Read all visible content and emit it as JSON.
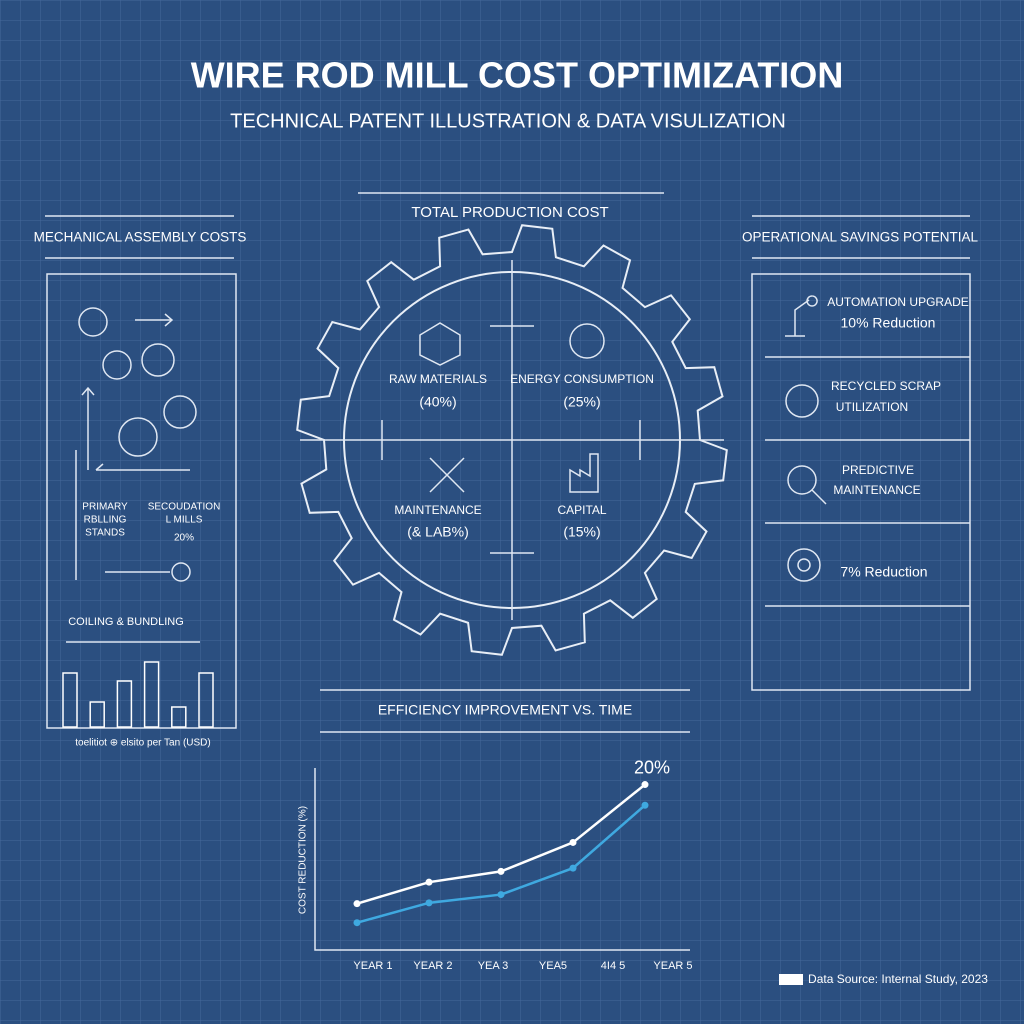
{
  "header": {
    "title": "WIRE ROD MILL COST OPTIMIZATION",
    "subtitle": "TECHNICAL PATENT ILLUSTRATION & DATA VISULIZATION"
  },
  "left_panel": {
    "title": "MECHANICAL ASSEMBLY COSTS",
    "primary": [
      "PRIMARY",
      "RBLLING",
      "STANDS"
    ],
    "secondary": [
      "SECOUDATION",
      "L MILLS"
    ],
    "percent": "20%",
    "coiling": "COILING & BUNDLING"
  },
  "gear": {
    "title": "TOTAL PRODUCTION COST",
    "quadrants": [
      {
        "label": "RAW MATERIALS",
        "share": "(40%)"
      },
      {
        "label": "ENERGY CONSUMPTION",
        "share": "(25%)"
      },
      {
        "label": "MAINTENANCE",
        "share": "(& LAB%)"
      },
      {
        "label": "CAPITAL",
        "share": "(15%)"
      }
    ]
  },
  "right_panel": {
    "title": "OPERATIONAL SAVINGS POTENTIAL",
    "items": [
      {
        "lines": [
          "AUTOMATION UPGRADE",
          "10% Reduction"
        ]
      },
      {
        "lines": [
          "RECYCLED SCRAP",
          "UTILIZATION"
        ]
      },
      {
        "lines": [
          "PREDICTIVE",
          "MAINTENANCE"
        ]
      },
      {
        "lines": [
          "7% Reduction"
        ]
      }
    ]
  },
  "footer": "Data Source: Internal Study, 2023",
  "chart_data": [
    {
      "type": "bar",
      "x_label": "toelitiot ⊕ elsito per Tan (USD)",
      "values": [
        54,
        25,
        46,
        65,
        20,
        54
      ],
      "ylim": [
        0,
        70
      ],
      "color": "#ffffff"
    },
    {
      "type": "line",
      "title": "EFFICIENCY IMPROVEMENT VS. TIME",
      "y_label": "COST REDUCTION (%)",
      "categories": [
        "YEAR 1",
        "YEAR 2",
        "YEA 3",
        "YEA5",
        "4I4 5",
        "YEAR 5"
      ],
      "series": [
        {
          "color": "#ffffff",
          "values": [
            5.6,
            8.2,
            9.5,
            13,
            20,
            null
          ]
        },
        {
          "color": "#3fa9e0",
          "values": [
            3.3,
            5.7,
            6.7,
            9.9,
            17.5,
            null
          ]
        }
      ],
      "ylim": [
        0,
        22
      ],
      "annotation": "20%"
    }
  ]
}
